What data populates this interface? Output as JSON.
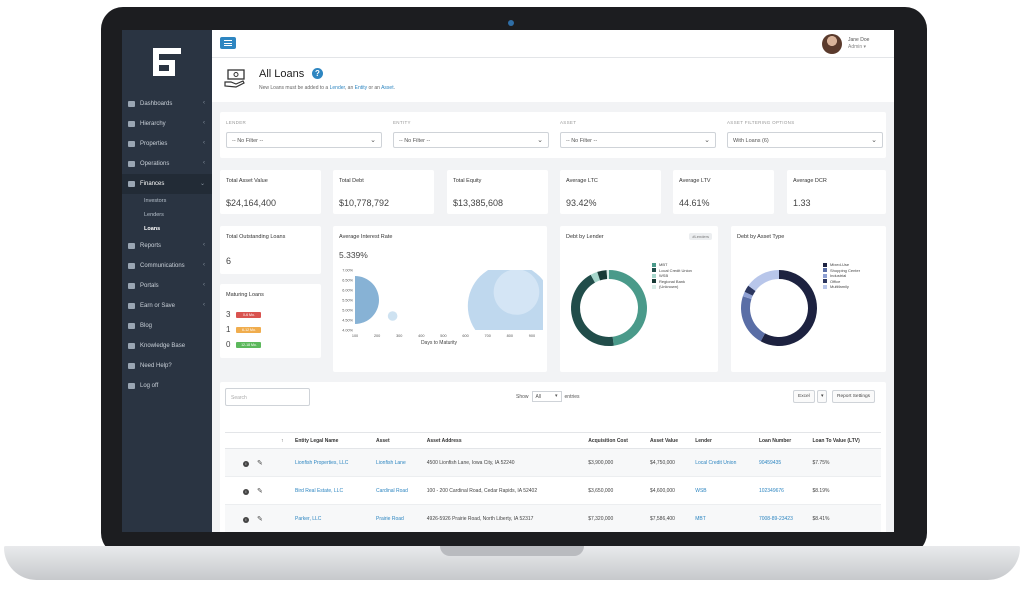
{
  "sidebar": {
    "items": [
      {
        "label": "Dashboards",
        "icon": "dashboard-icon"
      },
      {
        "label": "Hierarchy",
        "icon": "hierarchy-icon"
      },
      {
        "label": "Properties",
        "icon": "properties-icon"
      },
      {
        "label": "Operations",
        "icon": "operations-icon"
      },
      {
        "label": "Finances",
        "icon": "finances-icon"
      },
      {
        "label": "Reports",
        "icon": "reports-icon"
      },
      {
        "label": "Communications",
        "icon": "communications-icon"
      },
      {
        "label": "Portals",
        "icon": "portals-icon"
      },
      {
        "label": "Earn or Save",
        "icon": "earn-icon"
      },
      {
        "label": "Blog",
        "icon": "blog-icon"
      },
      {
        "label": "Knowledge Base",
        "icon": "knowledge-icon"
      },
      {
        "label": "Need Help?",
        "icon": "help-icon"
      },
      {
        "label": "Log off",
        "icon": "logoff-icon"
      }
    ],
    "finances_sub": [
      "Investors",
      "Lenders",
      "Loans"
    ]
  },
  "user": {
    "name": "Jane Doe",
    "role": "Admin ▾"
  },
  "header": {
    "title": "All Loans",
    "subtitle_prefix": "New Loans must be added to a",
    "link_lender": "Lender",
    "link_entity": "Entity",
    "link_asset": "Asset",
    "sep1": ", an",
    "sep2": "or an",
    "end": "."
  },
  "filters": [
    {
      "label": "LENDER",
      "value": "-- No Filter --"
    },
    {
      "label": "ENTITY",
      "value": "-- No Filter --"
    },
    {
      "label": "ASSET",
      "value": "-- No Filter --"
    },
    {
      "label": "ASSET FILTERING OPTIONS",
      "value": "With Loans (6)"
    }
  ],
  "stats": [
    {
      "label": "Total Asset Value",
      "value": "$24,164,400"
    },
    {
      "label": "Total Debt",
      "value": "$10,778,792"
    },
    {
      "label": "Total Equity",
      "value": "$13,385,608"
    },
    {
      "label": "Average LTC",
      "value": "93.42%"
    },
    {
      "label": "Average LTV",
      "value": "44.61%"
    },
    {
      "label": "Average DCR",
      "value": "1.33"
    }
  ],
  "outstanding": {
    "label": "Total Outstanding Loans",
    "value": "6"
  },
  "maturing": {
    "label": "Maturing Loans",
    "rows": [
      {
        "count": "3",
        "badge": "0-6 Mo.",
        "color": "#d9534f"
      },
      {
        "count": "1",
        "badge": "6-12 Mo.",
        "color": "#f0ad4e"
      },
      {
        "count": "0",
        "badge": "12-18 Mo.",
        "color": "#5cb85c"
      }
    ]
  },
  "interest": {
    "label": "Average Interest Rate",
    "value": "5.339%",
    "xlabel": "Days to Maturity",
    "yticks": [
      "7.00%",
      "6.50%",
      "6.00%",
      "5.50%",
      "5.00%",
      "4.50%",
      "4.00%"
    ],
    "xticks": [
      "100",
      "200",
      "300",
      "400",
      "500",
      "600",
      "700",
      "800",
      "900"
    ]
  },
  "chart_data": [
    {
      "type": "scatter",
      "title": "Average Interest Rate",
      "xlabel": "Days to Maturity",
      "ylabel": "",
      "xlim": [
        100,
        950
      ],
      "ylim": [
        4.0,
        7.0
      ],
      "points": [
        {
          "x": 100,
          "y": 5.5,
          "size": 40,
          "shade": "#7aaad0"
        },
        {
          "x": 270,
          "y": 4.7,
          "size": 8,
          "shade": "#c9dff0"
        },
        {
          "x": 800,
          "y": 5.2,
          "size": 70,
          "shade": "#b8d4ec"
        },
        {
          "x": 830,
          "y": 5.9,
          "size": 38,
          "shade": "#d6e7f5"
        }
      ]
    },
    {
      "type": "pie",
      "title": "Debt by Lender",
      "chip": "#Lenders",
      "labels": [
        "MBT",
        "Local Credit Union",
        "WSB",
        "Regional Bank",
        "(Unknown)"
      ],
      "colors": [
        "#4a9a8a",
        "#214d4a",
        "#a6d6cb",
        "#183a36",
        "#d7ece7"
      ],
      "values": [
        48,
        44,
        3,
        4,
        1
      ]
    },
    {
      "type": "pie",
      "title": "Debt by Asset Type",
      "labels": [
        "Mixed-Use",
        "Shopping Center",
        "Industrial",
        "Office",
        "Multifamily"
      ],
      "colors": [
        "#1d2240",
        "#5a6ea6",
        "#8ea0d3",
        "#2c3760",
        "#b8c6ea"
      ],
      "values": [
        58,
        22,
        2,
        3,
        15
      ]
    }
  ],
  "table": {
    "search_placeholder": "Search",
    "show_label": "Show",
    "show_value": "All",
    "entries_label": "entries",
    "excel": "Excel",
    "report_settings": "Report Settings",
    "columns": [
      "Entity Legal Name",
      "Asset",
      "Asset Address",
      "Acquisition Cost",
      "Asset Value",
      "Lender",
      "Loan Number",
      "Loan To Value (LTV)"
    ],
    "rows": [
      [
        "Lionfish Properties, LLC",
        "Lionfish Lane",
        "4500 Lionfish Lane, Iowa City, IA 52240",
        "$3,900,000",
        "$4,750,000",
        "Local Credit Union",
        "90459435",
        "$7.75%"
      ],
      [
        "Bird Real Estate, LLC",
        "Cardinal Road",
        "100 - 200 Cardinal Road, Cedar Rapids, IA 52402",
        "$3,650,000",
        "$4,600,000",
        "WSB",
        "102349676",
        "$8.19%"
      ],
      [
        "Parker, LLC",
        "Prairie Road",
        "4926-5926 Prairie Road, North Liberty, IA 52317",
        "$7,320,000",
        "$7,586,400",
        "MBT",
        "7008-89-23423",
        "$8.41%"
      ]
    ]
  }
}
